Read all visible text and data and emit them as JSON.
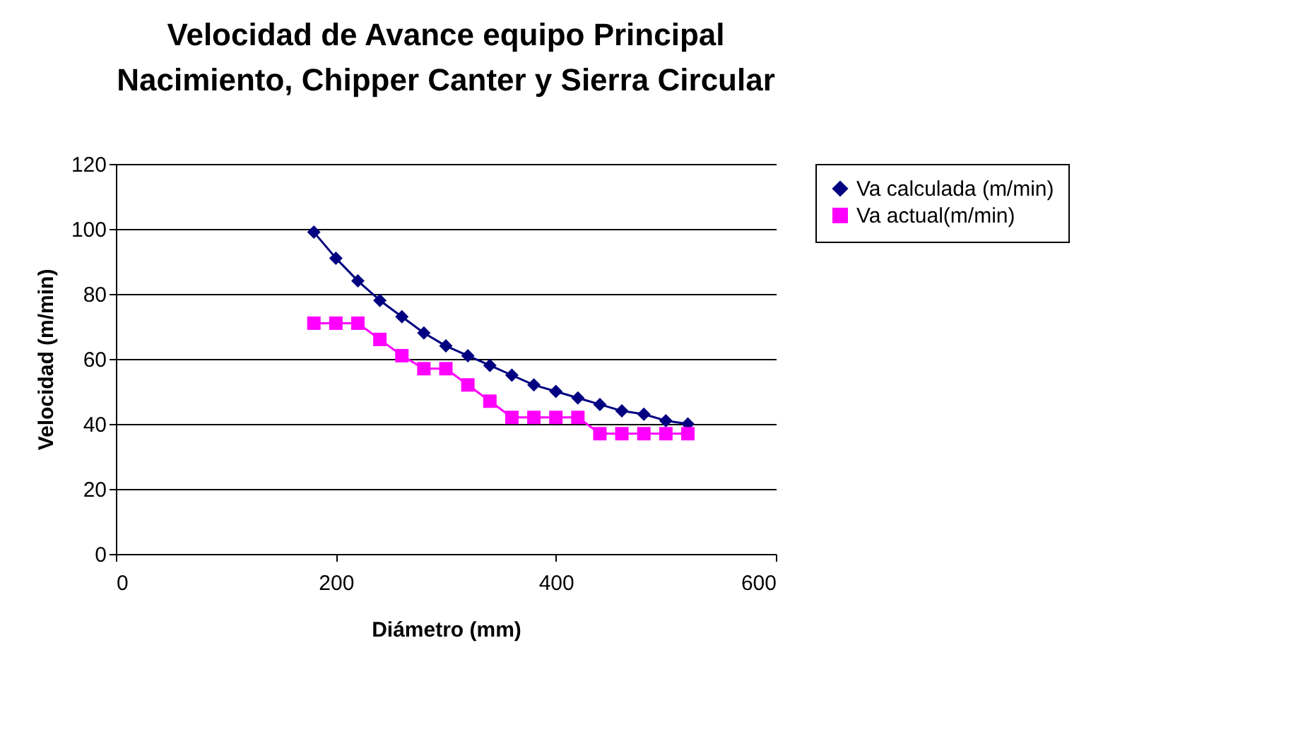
{
  "chart_data": {
    "type": "line",
    "title": [
      "Velocidad de Avance equipo Principal",
      "Nacimiento, Chipper Canter y Sierra Circular"
    ],
    "xlabel": "Diámetro (mm)",
    "ylabel": "Velocidad (m/min)",
    "x": [
      180,
      200,
      220,
      240,
      260,
      280,
      300,
      320,
      340,
      360,
      380,
      400,
      420,
      440,
      460,
      480,
      500,
      520
    ],
    "series": [
      {
        "name": "Va calculada (m/min)",
        "color": "#000080",
        "marker": "diamond",
        "values": [
          99,
          91,
          84,
          78,
          73,
          68,
          64,
          61,
          58,
          55,
          52,
          50,
          48,
          46,
          44,
          43,
          41,
          40
        ]
      },
      {
        "name": "Va actual(m/min)",
        "color": "#ff00ff",
        "marker": "square",
        "values": [
          71,
          71,
          71,
          66,
          61,
          57,
          57,
          52,
          47,
          42,
          42,
          42,
          42,
          37,
          37,
          37,
          37,
          37
        ]
      }
    ],
    "xlim": [
      0,
      600
    ],
    "xticks": [
      0,
      200,
      400,
      600
    ],
    "ylim": [
      0,
      120
    ],
    "yticks": [
      0,
      20,
      40,
      60,
      80,
      100,
      120
    ],
    "grid": "y",
    "legend": "right",
    "line_style": "solid"
  }
}
